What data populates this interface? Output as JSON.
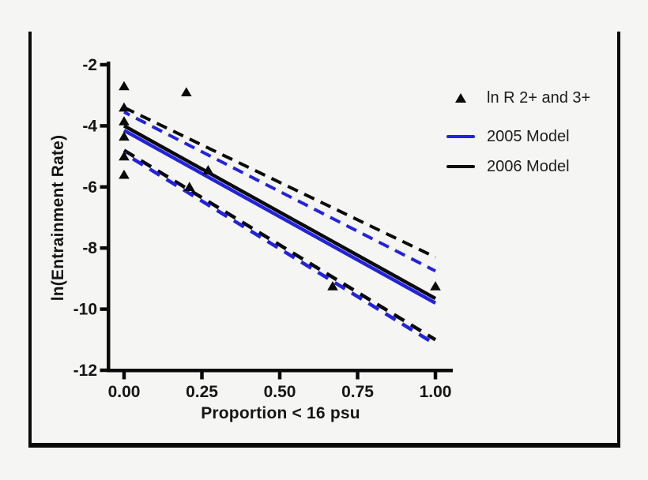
{
  "figure": {
    "background_color": "#f5f5f4",
    "frame_color": "#0a0a0a",
    "accent_blue": "#2323dd",
    "axis_color": "#0a0a0a"
  },
  "chart_data": {
    "type": "scatter",
    "title": "",
    "xlabel": "Proportion < 16 psu",
    "ylabel": "ln(Entrainment Rate)",
    "xlim": [
      0,
      1
    ],
    "ylim": [
      -12,
      -2
    ],
    "grid": false,
    "legend_position": "upper right",
    "x_ticks": [
      {
        "value": 0.0,
        "label": "0.00"
      },
      {
        "value": 0.25,
        "label": "0.25"
      },
      {
        "value": 0.5,
        "label": "0.50"
      },
      {
        "value": 0.75,
        "label": "0.75"
      },
      {
        "value": 1.0,
        "label": "1.00"
      }
    ],
    "y_ticks": [
      {
        "value": -2,
        "label": "-2"
      },
      {
        "value": -4,
        "label": "-4"
      },
      {
        "value": -6,
        "label": "-6"
      },
      {
        "value": -8,
        "label": "-8"
      },
      {
        "value": -10,
        "label": "-10"
      },
      {
        "value": -12,
        "label": "-12"
      }
    ],
    "scatter_series": {
      "name": "ln R 2+ and 3+",
      "marker": "triangle",
      "color": "#0a0a0a",
      "points": [
        [
          0.0,
          -2.7
        ],
        [
          0.0,
          -3.4
        ],
        [
          0.0,
          -3.85
        ],
        [
          0.0,
          -4.35
        ],
        [
          0.0,
          -5.0
        ],
        [
          0.0,
          -5.6
        ],
        [
          0.2,
          -2.9
        ],
        [
          0.21,
          -6.0
        ],
        [
          0.27,
          -5.45
        ],
        [
          0.67,
          -9.25
        ],
        [
          1.0,
          -9.25
        ]
      ]
    },
    "models": [
      {
        "name": "2006 Model",
        "color": "#0a0a0a",
        "fit": {
          "x": [
            0,
            1
          ],
          "y": [
            -4.0,
            -9.65
          ]
        },
        "ci_upper": {
          "x": [
            0,
            1
          ],
          "y": [
            -3.4,
            -8.3
          ]
        },
        "ci_lower": {
          "x": [
            0,
            1
          ],
          "y": [
            -4.8,
            -11.0
          ]
        }
      },
      {
        "name": "2005 Model",
        "color": "#2323dd",
        "fit": {
          "x": [
            0,
            1
          ],
          "y": [
            -4.15,
            -9.8
          ]
        },
        "ci_upper": {
          "x": [
            0,
            1
          ],
          "y": [
            -3.55,
            -8.75
          ]
        },
        "ci_lower": {
          "x": [
            0,
            1
          ],
          "y": [
            -4.9,
            -11.15
          ]
        }
      }
    ],
    "legend": {
      "entries": [
        {
          "label": "ln R 2+ and 3+",
          "type": "marker"
        },
        {
          "label": "2005 Model",
          "type": "line",
          "color": "#2323dd"
        },
        {
          "label": "2006 Model",
          "type": "line",
          "color": "#0a0a0a"
        }
      ]
    }
  }
}
